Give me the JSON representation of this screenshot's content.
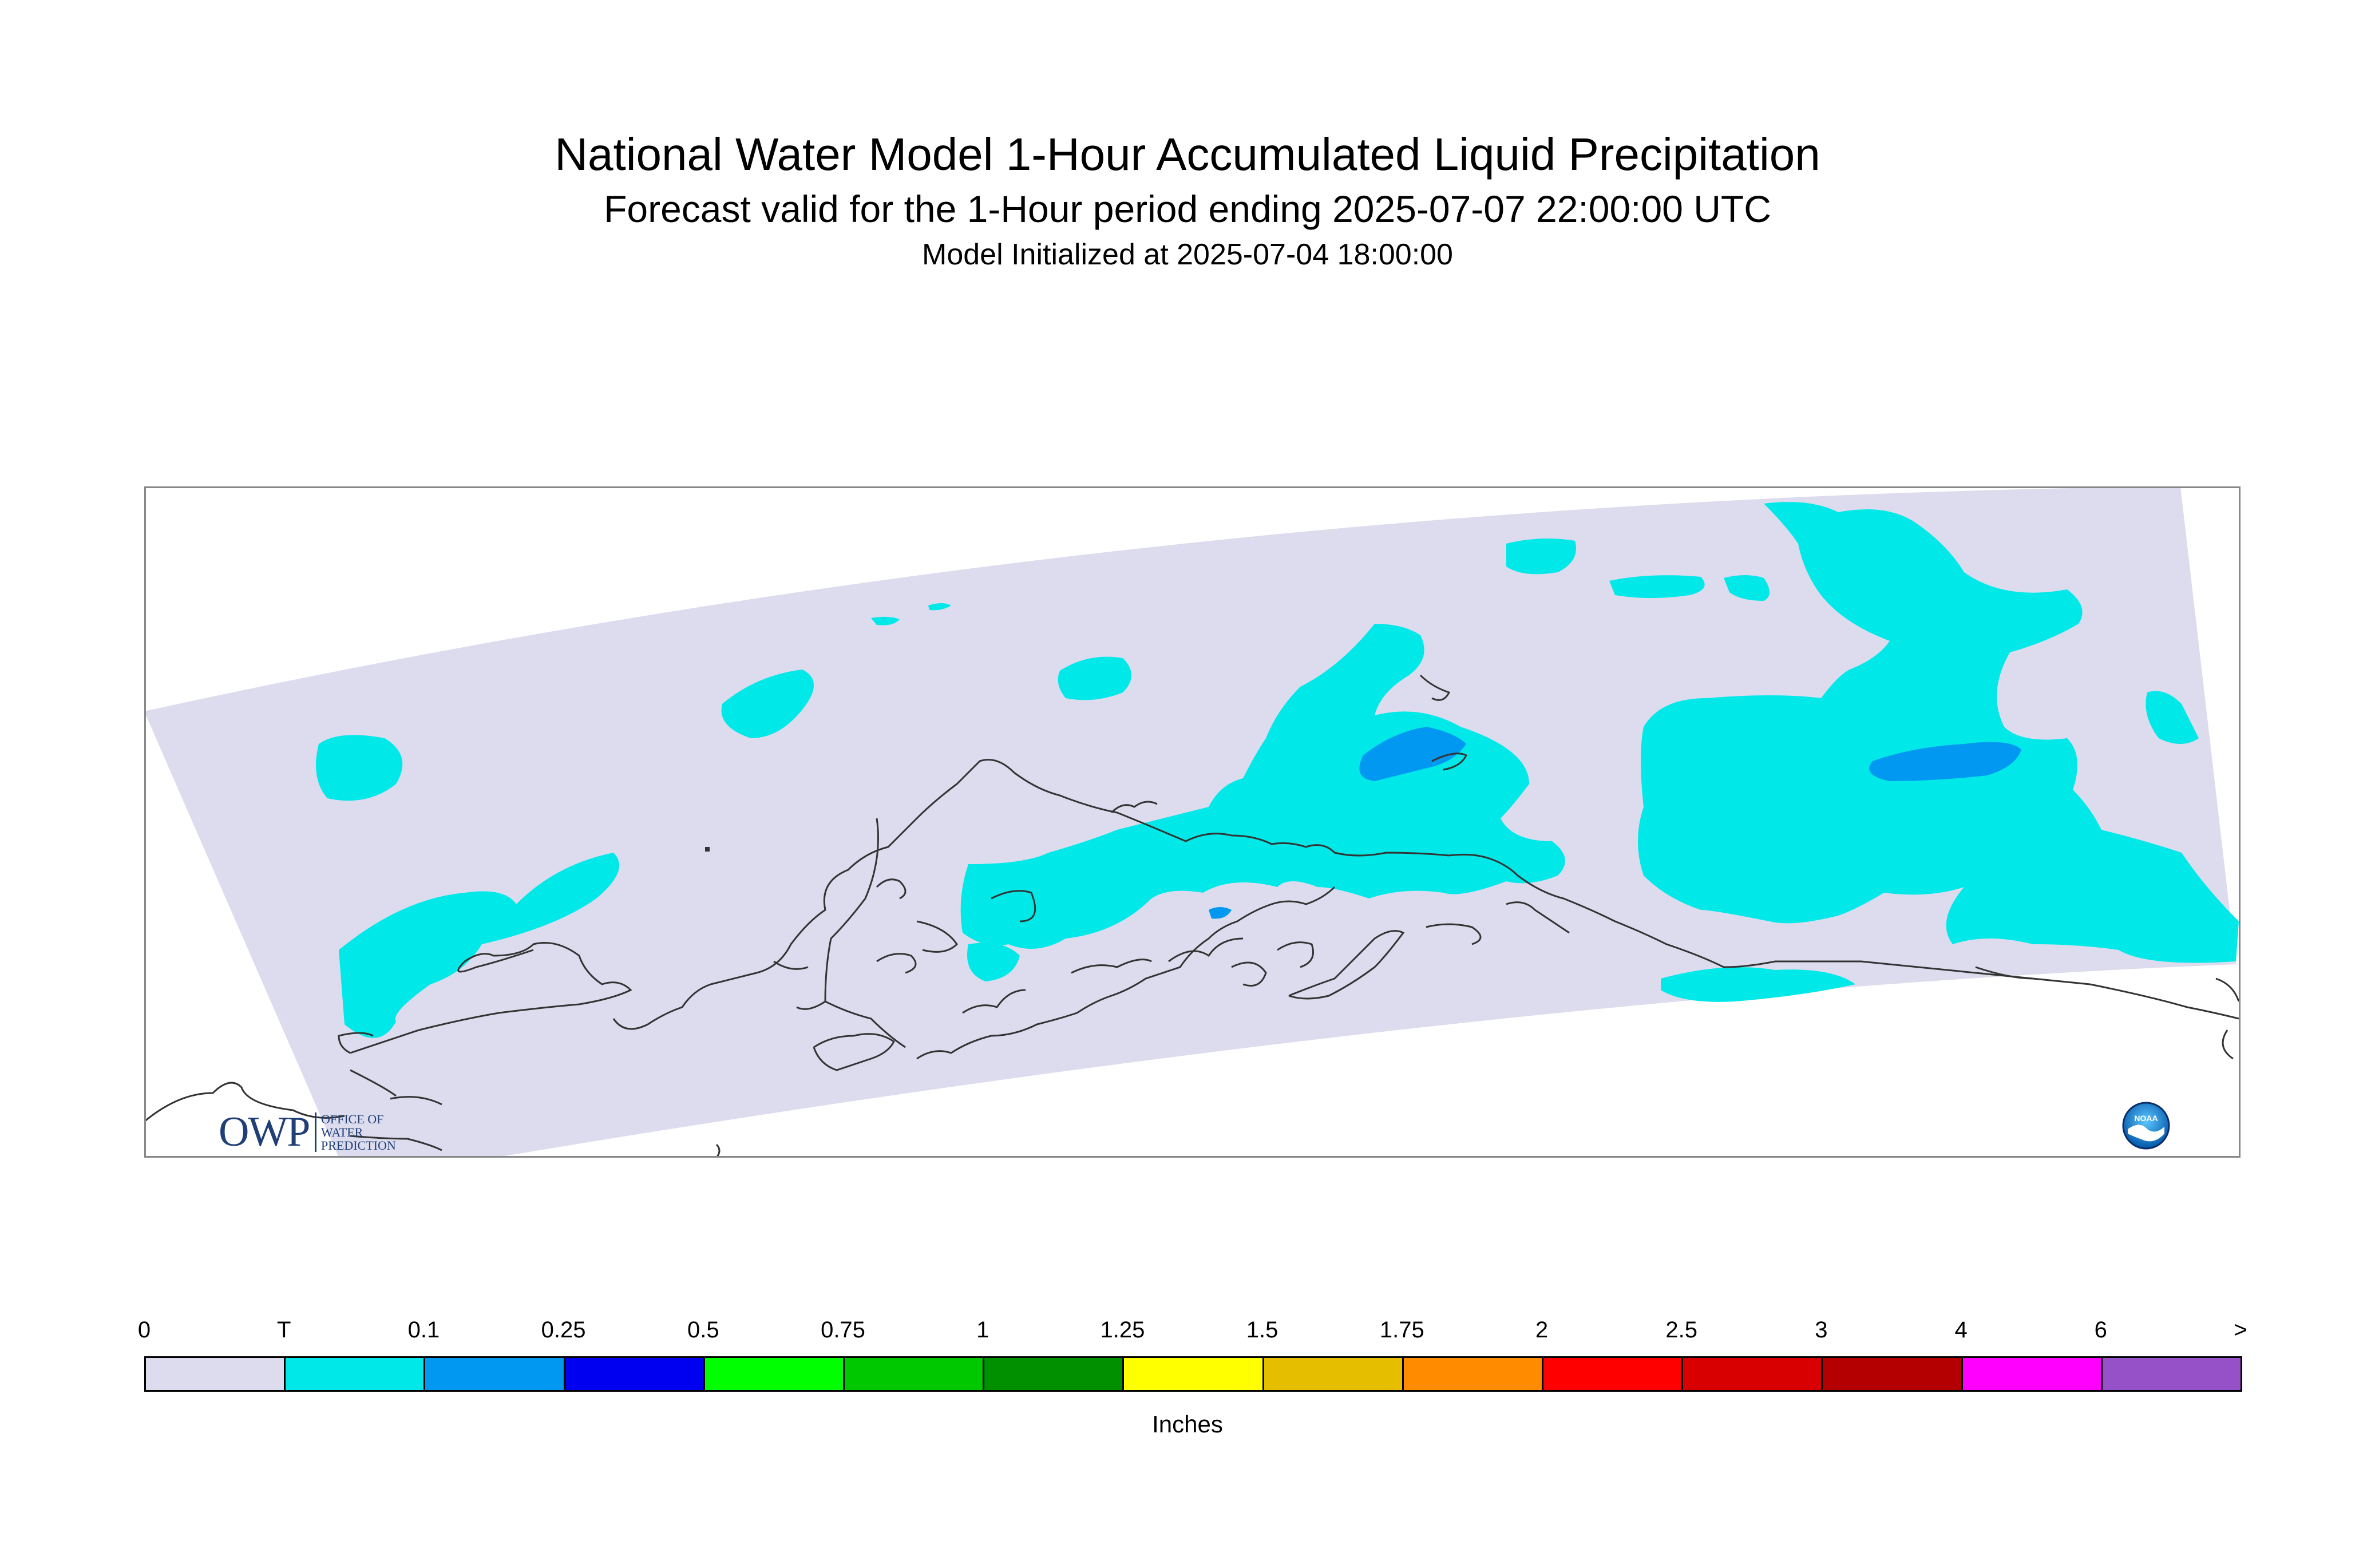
{
  "title": {
    "line1": "National Water Model 1-Hour Accumulated Liquid Precipitation",
    "line2": "Forecast valid for the 1-Hour period ending 2025-07-07 22:00:00 UTC",
    "line3": "Model Initialized at 2025-07-04 18:00:00"
  },
  "colors": {
    "domain": "#dcdcee",
    "trace": "#00e8e8",
    "light_blue": "#0098f0",
    "coast": "#333333"
  },
  "logos": {
    "owp_main": "OWP",
    "owp_sub": [
      "OFFICE OF",
      "WATER",
      "PREDICTION"
    ],
    "noaa": "NOAA"
  },
  "legend": {
    "units": "Inches",
    "labels": [
      "0",
      "T",
      "0.1",
      "0.25",
      "0.5",
      "0.75",
      "1",
      "1.25",
      "1.5",
      "1.75",
      "2",
      "2.5",
      "3",
      "4",
      "6",
      ">"
    ],
    "colors": [
      "#dcdcee",
      "#00e8e8",
      "#0098f0",
      "#0000f0",
      "#00ff00",
      "#00c800",
      "#009000",
      "#ffff00",
      "#e6be00",
      "#ff8c00",
      "#ff0000",
      "#d80000",
      "#b40000",
      "#ff00ff",
      "#9650c8"
    ]
  }
}
